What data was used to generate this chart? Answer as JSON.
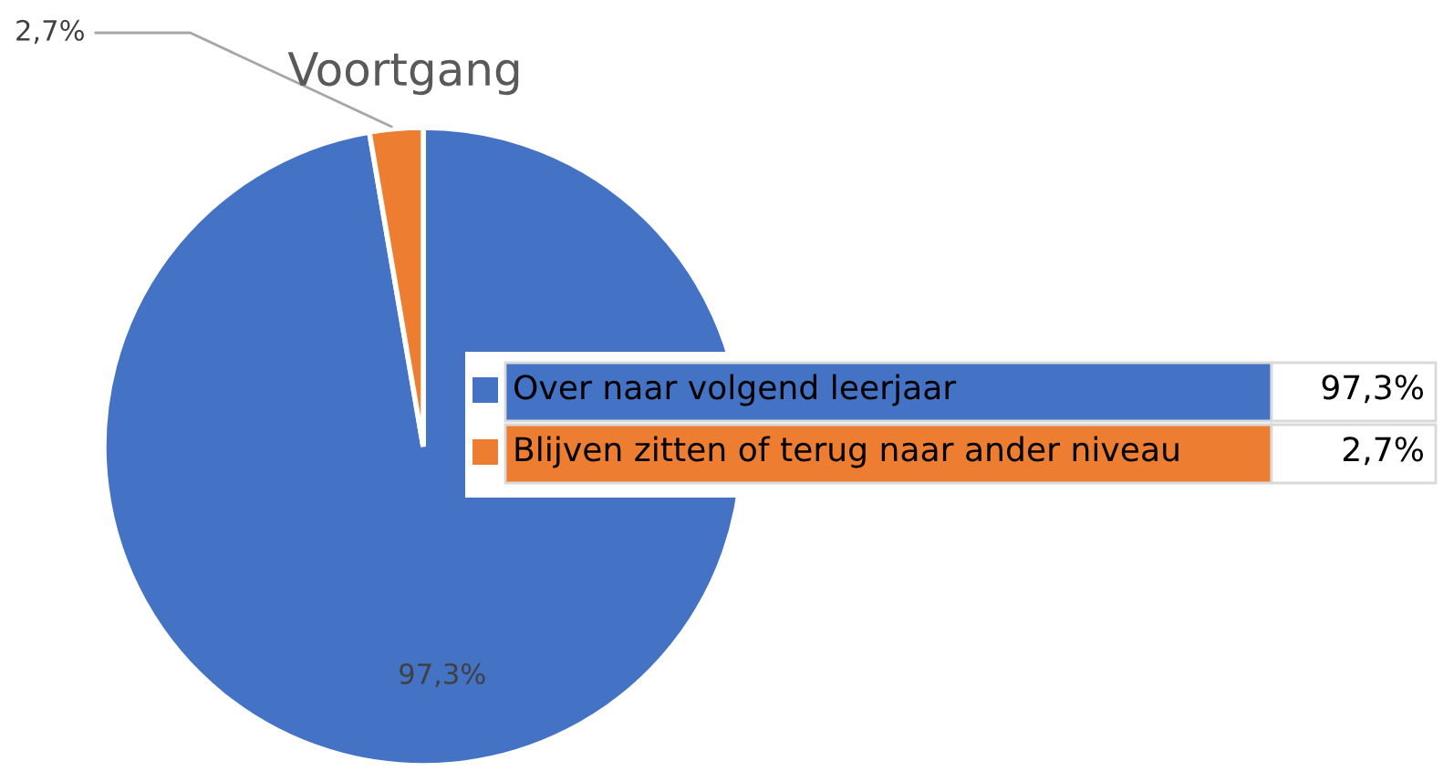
{
  "chart_data": {
    "type": "pie",
    "title": "Voortgang",
    "categories": [
      "Over naar volgend leerjaar",
      "Blijven zitten of terug naar ander niveau"
    ],
    "values": [
      97.3,
      2.7
    ],
    "colors": [
      "#4472c4",
      "#ed7d31"
    ],
    "value_labels": [
      "97,3%",
      "2,7%"
    ],
    "legend": "right"
  }
}
